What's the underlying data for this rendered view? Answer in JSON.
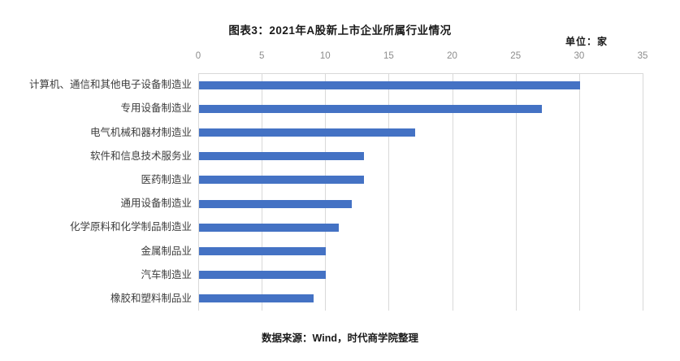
{
  "figure": {
    "title": "图表3：2021年A股新上市企业所属行业情况",
    "unit_label": "单位：家",
    "source": "数据来源：Wind，时代商学院整理"
  },
  "chart_data": {
    "type": "bar",
    "orientation": "horizontal",
    "title": "图表3：2021年A股新上市企业所属行业情况",
    "unit": "单位：家",
    "categories": [
      "计算机、通信和其他电子设备制造业",
      "专用设备制造业",
      "电气机械和器材制造业",
      "软件和信息技术服务业",
      "医药制造业",
      "通用设备制造业",
      "化学原料和化学制品制造业",
      "金属制品业",
      "汽车制造业",
      "橡胶和塑料制品业"
    ],
    "values": [
      30,
      27,
      17,
      13,
      13,
      12,
      11,
      10,
      10,
      9
    ],
    "xlabel": "",
    "ylabel": "",
    "xlim": [
      0,
      35
    ],
    "x_ticks": [
      0,
      5,
      10,
      15,
      20,
      25,
      30,
      35
    ],
    "tick_axis_position": "top",
    "grid": true,
    "legend": "none",
    "source": "数据来源：Wind，时代商学院整理"
  },
  "colors": {
    "bar": "#4472C4",
    "gridline": "#d9d9d9",
    "tick_text": "#8c8c8c",
    "category_text": "#3d3d3d",
    "title_text": "#1a1a1a"
  }
}
